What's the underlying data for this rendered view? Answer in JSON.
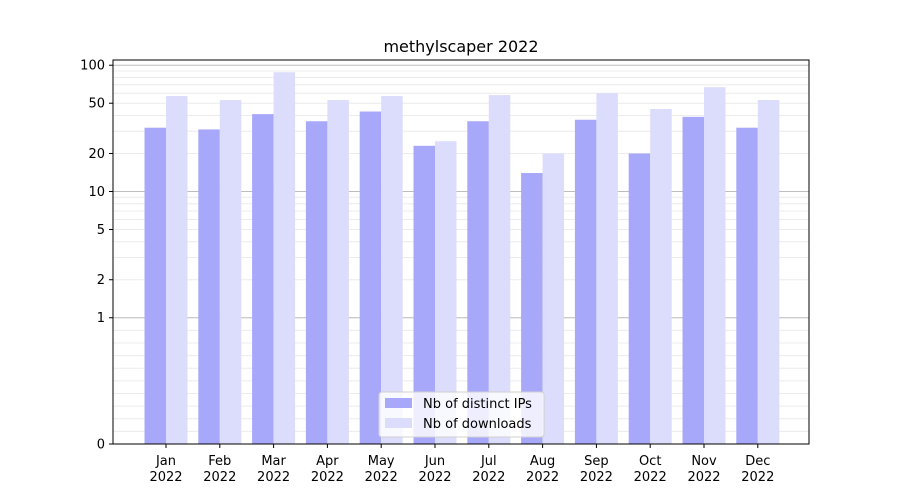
{
  "chart_data": {
    "type": "bar",
    "title": "methylscaper 2022",
    "xlabel": "",
    "ylabel": "",
    "yscale": "symlog",
    "ylim": [
      0,
      110
    ],
    "y_ticks": [
      0,
      1,
      2,
      5,
      10,
      20,
      50,
      100
    ],
    "categories": [
      "Jan\n2022",
      "Feb\n2022",
      "Mar\n2022",
      "Apr\n2022",
      "May\n2022",
      "Jun\n2022",
      "Jul\n2022",
      "Aug\n2022",
      "Sep\n2022",
      "Oct\n2022",
      "Nov\n2022",
      "Dec\n2022"
    ],
    "series": [
      {
        "name": "Nb of distinct IPs",
        "color": "#a8a8fb",
        "values": [
          32,
          31,
          41,
          36,
          43,
          23,
          36,
          14,
          37,
          20,
          39,
          32
        ]
      },
      {
        "name": "Nb of downloads",
        "color": "#dcdcfc",
        "values": [
          57,
          53,
          88,
          53,
          57,
          25,
          58,
          20,
          60,
          45,
          67,
          53
        ]
      }
    ],
    "grid": true,
    "legend_position": "lower-center"
  }
}
